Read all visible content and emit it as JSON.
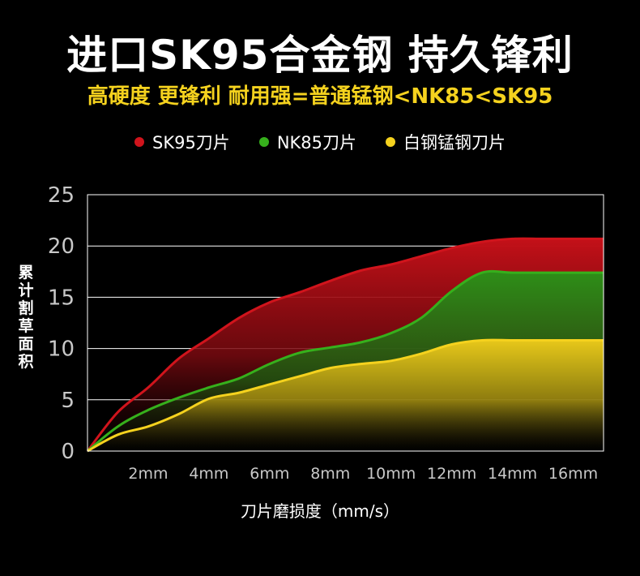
{
  "title": "进口SK95合金钢 持久锋利",
  "subtitle": "高硬度 更锋利 耐用强=普通锰钢<NK85<SK95",
  "chart_data": {
    "type": "area",
    "xlabel": "刀片磨损度（mm/s）",
    "ylabel": "累计割草面积",
    "ylim": [
      0,
      25
    ],
    "yticks": [
      "0",
      "5",
      "10",
      "15",
      "20",
      "25"
    ],
    "categories": [
      "2mm",
      "4mm",
      "6mm",
      "8mm",
      "10mm",
      "12mm",
      "14mm",
      "16mm"
    ],
    "legend_position": "top-center",
    "grid": true,
    "x": [
      0,
      0.5,
      1,
      1.5,
      2,
      2.5,
      3,
      3.5,
      4,
      4.5,
      5,
      5.5,
      6,
      6.5,
      7,
      7.5,
      8,
      8.5
    ],
    "series": [
      {
        "name": "SK95刀片",
        "color": "#d0141c",
        "values": [
          0,
          3.8,
          6.2,
          9.0,
          11.0,
          13.0,
          14.5,
          15.5,
          16.6,
          17.6,
          18.2,
          19.0,
          19.8,
          20.4,
          20.7,
          20.7,
          20.7,
          20.7
        ]
      },
      {
        "name": "NK85刀片",
        "color": "#36b01c",
        "values": [
          0,
          2.4,
          4.0,
          5.2,
          6.2,
          7.1,
          8.5,
          9.6,
          10.1,
          10.6,
          11.5,
          13.0,
          15.6,
          17.4,
          17.4,
          17.4,
          17.4,
          17.4
        ]
      },
      {
        "name": "白钢锰钢刀片",
        "color": "#f5d21e",
        "values": [
          0,
          1.6,
          2.4,
          3.6,
          5.1,
          5.7,
          6.5,
          7.3,
          8.1,
          8.5,
          8.8,
          9.5,
          10.4,
          10.8,
          10.8,
          10.8,
          10.8,
          10.8
        ]
      }
    ]
  }
}
